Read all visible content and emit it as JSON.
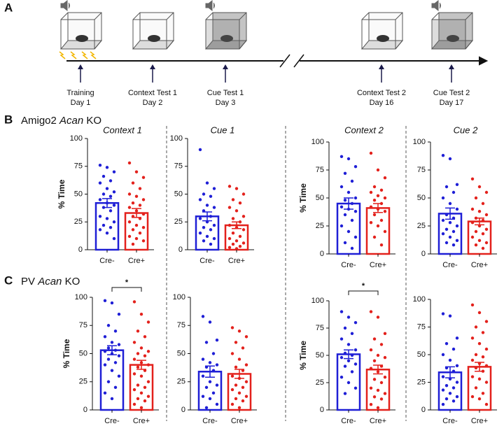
{
  "panels": [
    "A",
    "B",
    "C"
  ],
  "headings": [
    [
      "Amigo2",
      "Acan",
      "KO"
    ],
    [
      "PV",
      "Acan",
      "KO"
    ]
  ],
  "timeline": {
    "events": [
      {
        "label": "Training",
        "day": "Day 1"
      },
      {
        "label": "Context Test 1",
        "day": "Day 2"
      },
      {
        "label": "Cue Test 1",
        "day": "Day 3"
      },
      {
        "label": "Context Test 2",
        "day": "Day 16"
      },
      {
        "label": "Cue Test 2",
        "day": "Day 17"
      }
    ]
  },
  "chart_data": [
    {
      "type": "bar",
      "title": "Context 1",
      "ylabel": "% Time",
      "categories": [
        "Cre-",
        "Cre+"
      ],
      "values": [
        42,
        33
      ],
      "errors": [
        4,
        4
      ],
      "colors": [
        "#1f1fd6",
        "#e3211c"
      ],
      "points": [
        [
          76,
          74,
          70,
          66,
          62,
          60,
          55,
          52,
          50,
          48,
          45,
          42,
          40,
          38,
          35,
          30,
          28,
          25,
          22,
          20,
          18,
          15,
          10
        ],
        [
          78,
          70,
          65,
          60,
          55,
          50,
          48,
          45,
          42,
          40,
          38,
          35,
          32,
          30,
          28,
          25,
          22,
          20,
          18,
          15,
          12,
          10,
          8,
          5
        ]
      ],
      "ylim": [
        0,
        100
      ],
      "yticks": [
        0,
        25,
        50,
        75,
        100
      ]
    },
    {
      "type": "bar",
      "title": "Cue 1",
      "categories": [
        "Cre-",
        "Cre+"
      ],
      "values": [
        30,
        22
      ],
      "errors": [
        4,
        3
      ],
      "colors": [
        "#1f1fd6",
        "#e3211c"
      ],
      "points": [
        [
          90,
          60,
          55,
          50,
          48,
          45,
          40,
          38,
          35,
          30,
          28,
          25,
          22,
          20,
          18,
          15,
          12,
          10,
          8,
          5
        ],
        [
          57,
          55,
          50,
          45,
          42,
          38,
          35,
          30,
          28,
          25,
          22,
          20,
          18,
          15,
          12,
          10,
          8,
          6,
          5,
          3,
          2,
          1
        ]
      ],
      "ylim": [
        0,
        100
      ],
      "yticks": [
        0,
        25,
        50,
        75,
        100
      ]
    },
    {
      "type": "bar",
      "title": "Context 2",
      "ylabel": "% Time",
      "categories": [
        "Cre-",
        "Cre+"
      ],
      "values": [
        45,
        41
      ],
      "errors": [
        5,
        4
      ],
      "colors": [
        "#1f1fd6",
        "#e3211c"
      ],
      "points": [
        [
          87,
          85,
          78,
          72,
          65,
          60,
          55,
          50,
          48,
          45,
          42,
          40,
          38,
          35,
          30,
          25,
          20,
          15,
          10,
          5
        ],
        [
          90,
          75,
          68,
          60,
          57,
          55,
          52,
          50,
          48,
          45,
          42,
          40,
          38,
          35,
          30,
          28,
          25,
          20,
          15,
          8
        ]
      ],
      "ylim": [
        0,
        100
      ],
      "yticks": [
        0,
        25,
        50,
        75,
        100
      ]
    },
    {
      "type": "bar",
      "title": "Cue 2",
      "categories": [
        "Cre-",
        "Cre+"
      ],
      "values": [
        36,
        29
      ],
      "errors": [
        5,
        3
      ],
      "colors": [
        "#1f1fd6",
        "#e3211c"
      ],
      "points": [
        [
          88,
          85,
          62,
          60,
          55,
          50,
          45,
          40,
          35,
          32,
          30,
          28,
          25,
          22,
          20,
          18,
          15,
          12,
          10,
          8
        ],
        [
          67,
          60,
          55,
          50,
          45,
          40,
          38,
          35,
          32,
          30,
          28,
          25,
          22,
          20,
          18,
          15,
          12,
          10,
          8,
          5
        ]
      ],
      "ylim": [
        0,
        100
      ],
      "yticks": [
        0,
        25,
        50,
        75,
        100
      ]
    },
    {
      "type": "bar",
      "ylabel": "% Time",
      "categories": [
        "Cre-",
        "Cre+"
      ],
      "values": [
        53,
        40
      ],
      "errors": [
        4,
        4
      ],
      "colors": [
        "#1f1fd6",
        "#e3211c"
      ],
      "significance": "*",
      "points": [
        [
          97,
          95,
          85,
          75,
          70,
          65,
          60,
          58,
          55,
          53,
          52,
          50,
          48,
          45,
          42,
          40,
          35,
          30,
          25,
          20,
          15,
          10
        ],
        [
          96,
          85,
          78,
          70,
          65,
          60,
          55,
          52,
          50,
          48,
          45,
          42,
          40,
          38,
          35,
          32,
          30,
          25,
          22,
          20,
          18,
          15,
          12,
          10,
          8,
          5,
          2
        ]
      ],
      "ylim": [
        0,
        100
      ],
      "yticks": [
        0,
        25,
        50,
        75,
        100
      ]
    },
    {
      "type": "bar",
      "categories": [
        "Cre-",
        "Cre+"
      ],
      "values": [
        34,
        32
      ],
      "errors": [
        5,
        4
      ],
      "colors": [
        "#1f1fd6",
        "#e3211c"
      ],
      "points": [
        [
          83,
          78,
          62,
          60,
          50,
          45,
          42,
          40,
          38,
          35,
          30,
          25,
          22,
          20,
          15,
          12,
          10,
          5,
          2
        ],
        [
          73,
          70,
          65,
          60,
          55,
          50,
          45,
          40,
          38,
          35,
          30,
          28,
          25,
          22,
          20,
          18,
          15,
          12,
          10,
          8,
          5,
          2
        ]
      ],
      "ylim": [
        0,
        100
      ],
      "yticks": [
        0,
        25,
        50,
        75,
        100
      ]
    },
    {
      "type": "bar",
      "ylabel": "% Time",
      "categories": [
        "Cre-",
        "Cre+"
      ],
      "values": [
        51,
        37
      ],
      "errors": [
        4,
        4
      ],
      "colors": [
        "#1f1fd6",
        "#e3211c"
      ],
      "significance": "*",
      "points": [
        [
          90,
          85,
          80,
          75,
          70,
          65,
          60,
          55,
          52,
          50,
          48,
          45,
          42,
          40,
          35,
          30,
          25,
          20,
          15
        ],
        [
          90,
          85,
          70,
          65,
          60,
          55,
          50,
          48,
          45,
          40,
          38,
          35,
          30,
          28,
          25,
          20,
          18,
          15,
          12,
          10,
          5,
          2
        ]
      ],
      "ylim": [
        0,
        100
      ],
      "yticks": [
        0,
        25,
        50,
        75,
        100
      ]
    },
    {
      "type": "bar",
      "categories": [
        "Cre-",
        "Cre+"
      ],
      "values": [
        34,
        39
      ],
      "errors": [
        5,
        4
      ],
      "colors": [
        "#1f1fd6",
        "#e3211c"
      ],
      "points": [
        [
          87,
          85,
          65,
          60,
          55,
          50,
          45,
          40,
          38,
          35,
          30,
          28,
          25,
          22,
          20,
          18,
          15,
          12,
          10,
          8,
          5
        ],
        [
          95,
          88,
          80,
          75,
          70,
          65,
          60,
          55,
          50,
          48,
          45,
          42,
          40,
          38,
          35,
          30,
          28,
          25,
          20,
          15,
          12,
          10,
          5
        ]
      ],
      "ylim": [
        0,
        100
      ],
      "yticks": [
        0,
        25,
        50,
        75,
        100
      ]
    }
  ]
}
